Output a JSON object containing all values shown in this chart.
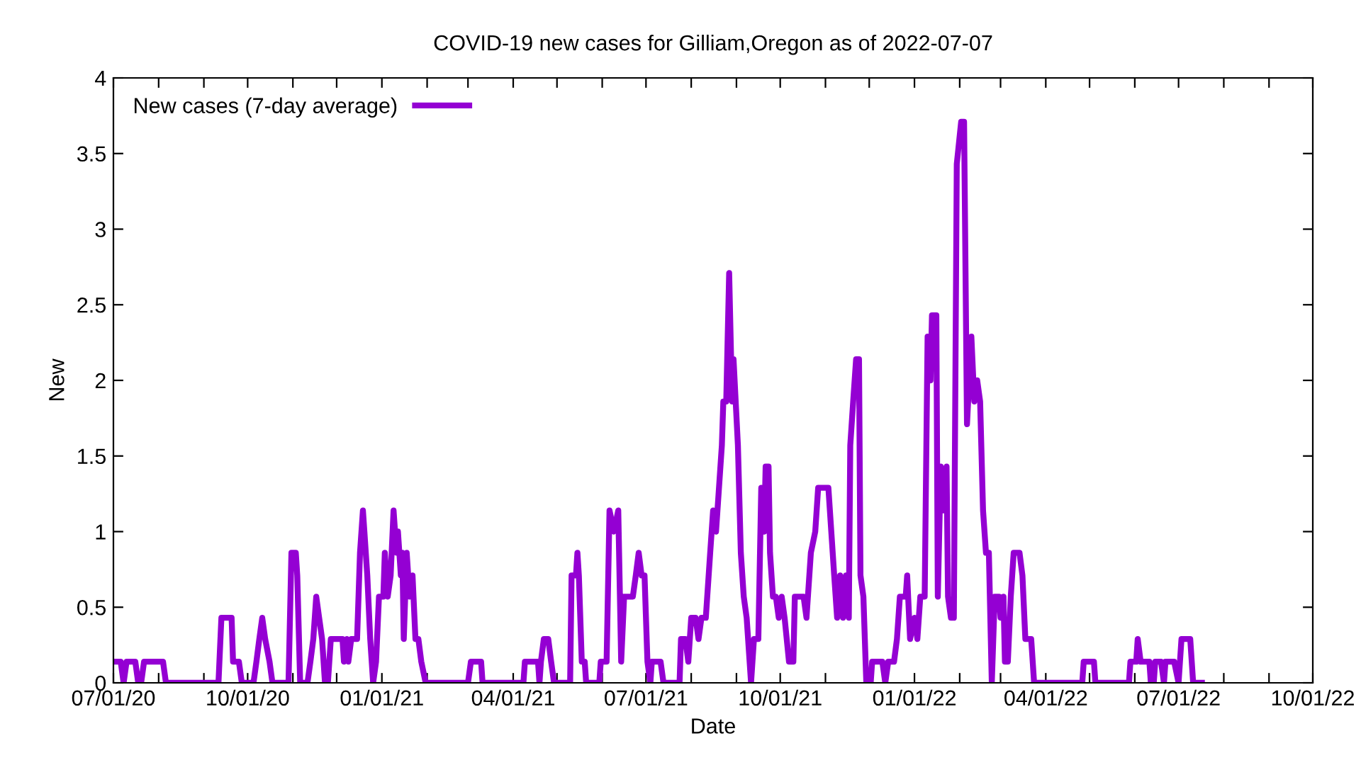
{
  "chart_data": {
    "type": "line",
    "title": "COVID-19 new cases for Gilliam,Oregon as of 2022-07-07",
    "xlabel": "Date",
    "ylabel": "New",
    "series": [
      {
        "name": "New cases (7-day average)",
        "color": "#9400d3",
        "x": [
          "2020-07-01",
          "2020-07-06",
          "2020-07-08",
          "2020-07-10",
          "2020-07-16",
          "2020-07-18",
          "2020-07-20",
          "2020-07-22",
          "2020-08-04",
          "2020-08-06",
          "2020-09-11",
          "2020-09-13",
          "2020-09-20",
          "2020-09-21",
          "2020-09-25",
          "2020-09-27",
          "2020-10-05",
          "2020-10-07",
          "2020-10-09",
          "2020-10-11",
          "2020-10-13",
          "2020-10-16",
          "2020-10-18",
          "2020-10-29",
          "2020-10-31",
          "2020-11-03",
          "2020-11-04",
          "2020-11-06",
          "2020-11-11",
          "2020-11-13",
          "2020-11-15",
          "2020-11-17",
          "2020-11-19",
          "2020-11-21",
          "2020-11-23",
          "2020-11-25",
          "2020-11-27",
          "2020-12-05",
          "2020-12-06",
          "2020-12-08",
          "2020-12-09",
          "2020-12-11",
          "2020-12-15",
          "2020-12-17",
          "2020-12-19",
          "2020-12-20",
          "2020-12-22",
          "2020-12-24",
          "2020-12-26",
          "2020-12-28",
          "2020-12-30",
          "2021-01-02",
          "2021-01-03",
          "2021-01-05",
          "2021-01-07",
          "2021-01-09",
          "2021-01-11",
          "2021-01-12",
          "2021-01-14",
          "2021-01-15",
          "2021-01-16",
          "2021-01-18",
          "2021-01-20",
          "2021-01-22",
          "2021-01-24",
          "2021-01-26",
          "2021-01-28",
          "2021-01-31",
          "2021-03-01",
          "2021-03-03",
          "2021-03-10",
          "2021-03-11",
          "2021-04-08",
          "2021-04-09",
          "2021-04-18",
          "2021-04-19",
          "2021-04-20",
          "2021-04-22",
          "2021-04-25",
          "2021-04-27",
          "2021-04-29",
          "2021-05-10",
          "2021-05-11",
          "2021-05-14",
          "2021-05-15",
          "2021-05-16",
          "2021-05-18",
          "2021-05-20",
          "2021-05-21",
          "2021-05-30",
          "2021-05-31",
          "2021-06-04",
          "2021-06-06",
          "2021-06-09",
          "2021-06-12",
          "2021-06-14",
          "2021-06-16",
          "2021-06-22",
          "2021-06-24",
          "2021-06-26",
          "2021-06-28",
          "2021-06-30",
          "2021-07-02",
          "2021-07-04",
          "2021-07-05",
          "2021-07-11",
          "2021-07-13",
          "2021-07-24",
          "2021-07-25",
          "2021-07-28",
          "2021-07-30",
          "2021-08-01",
          "2021-08-04",
          "2021-08-06",
          "2021-08-08",
          "2021-08-11",
          "2021-08-14",
          "2021-08-16",
          "2021-08-18",
          "2021-08-22",
          "2021-08-23",
          "2021-08-25",
          "2021-08-27",
          "2021-08-29",
          "2021-08-30",
          "2021-09-02",
          "2021-09-04",
          "2021-09-06",
          "2021-09-08",
          "2021-09-11",
          "2021-09-13",
          "2021-09-16",
          "2021-09-18",
          "2021-09-20",
          "2021-09-21",
          "2021-09-23",
          "2021-09-24",
          "2021-09-26",
          "2021-09-28",
          "2021-09-30",
          "2021-10-02",
          "2021-10-04",
          "2021-10-07",
          "2021-10-10",
          "2021-10-11",
          "2021-10-17",
          "2021-10-19",
          "2021-10-22",
          "2021-10-25",
          "2021-10-27",
          "2021-11-03",
          "2021-11-07",
          "2021-11-09",
          "2021-11-11",
          "2021-11-13",
          "2021-11-15",
          "2021-11-17",
          "2021-11-18",
          "2021-11-20",
          "2021-11-22",
          "2021-11-24",
          "2021-11-25",
          "2021-11-27",
          "2021-11-29",
          "2021-12-02",
          "2021-12-03",
          "2021-12-10",
          "2021-12-12",
          "2021-12-14",
          "2021-12-18",
          "2021-12-20",
          "2021-12-22",
          "2021-12-26",
          "2021-12-27",
          "2021-12-29",
          "2022-01-01",
          "2022-01-03",
          "2022-01-05",
          "2022-01-08",
          "2022-01-10",
          "2022-01-12",
          "2022-01-13",
          "2022-01-16",
          "2022-01-17",
          "2022-01-19",
          "2022-01-21",
          "2022-01-23",
          "2022-01-24",
          "2022-01-26",
          "2022-01-28",
          "2022-01-30",
          "2022-02-02",
          "2022-02-04",
          "2022-02-06",
          "2022-02-09",
          "2022-02-11",
          "2022-02-13",
          "2022-02-15",
          "2022-02-17",
          "2022-02-19",
          "2022-02-21",
          "2022-02-23",
          "2022-02-25",
          "2022-02-28",
          "2022-03-01",
          "2022-03-03",
          "2022-03-04",
          "2022-03-06",
          "2022-03-08",
          "2022-03-10",
          "2022-03-14",
          "2022-03-16",
          "2022-03-18",
          "2022-03-22",
          "2022-03-24",
          "2022-04-26",
          "2022-04-27",
          "2022-05-04",
          "2022-05-05",
          "2022-05-28",
          "2022-05-29",
          "2022-06-02",
          "2022-06-03",
          "2022-06-05",
          "2022-06-11",
          "2022-06-12",
          "2022-06-14",
          "2022-06-15",
          "2022-06-19",
          "2022-06-21",
          "2022-06-22",
          "2022-06-28",
          "2022-07-01",
          "2022-07-03",
          "2022-07-09",
          "2022-07-11",
          "2022-07-17"
        ],
        "values": [
          0.14,
          0.14,
          0,
          0.14,
          0.14,
          0,
          0,
          0.14,
          0.14,
          0,
          0,
          0.43,
          0.43,
          0.14,
          0.14,
          0,
          0,
          0.14,
          0.29,
          0.43,
          0.29,
          0.14,
          0,
          0,
          0.86,
          0.86,
          0.71,
          0,
          0,
          0.14,
          0.29,
          0.57,
          0.43,
          0.29,
          0,
          0,
          0.29,
          0.29,
          0.14,
          0.29,
          0.14,
          0.29,
          0.29,
          0.86,
          1.14,
          1.0,
          0.71,
          0.29,
          0,
          0.14,
          0.57,
          0.57,
          0.86,
          0.57,
          0.71,
          1.14,
          0.86,
          1.0,
          0.71,
          0.86,
          0.29,
          0.86,
          0.57,
          0.71,
          0.29,
          0.29,
          0.14,
          0,
          0,
          0.14,
          0.14,
          0,
          0,
          0.14,
          0.14,
          0,
          0.14,
          0.29,
          0.29,
          0.14,
          0,
          0,
          0.71,
          0.71,
          0.86,
          0.71,
          0.14,
          0.14,
          0,
          0,
          0.14,
          0.14,
          1.14,
          1.0,
          1.14,
          0.14,
          0.57,
          0.57,
          0.71,
          0.86,
          0.71,
          0.71,
          0.14,
          0,
          0.14,
          0.14,
          0,
          0,
          0.29,
          0.29,
          0.14,
          0.43,
          0.43,
          0.29,
          0.43,
          0.43,
          0.86,
          1.14,
          1.0,
          1.57,
          1.86,
          1.86,
          2.71,
          1.86,
          2.14,
          1.57,
          0.86,
          0.57,
          0.43,
          0,
          0.29,
          0.29,
          1.29,
          1.0,
          1.43,
          1.43,
          0.86,
          0.57,
          0.57,
          0.43,
          0.57,
          0.43,
          0.14,
          0.14,
          0.57,
          0.57,
          0.43,
          0.86,
          1.0,
          1.29,
          1.29,
          0.71,
          0.43,
          0.71,
          0.43,
          0.71,
          0.43,
          1.57,
          1.86,
          2.14,
          2.14,
          0.71,
          0.57,
          0,
          0,
          0.14,
          0.14,
          0,
          0.14,
          0.14,
          0.29,
          0.57,
          0.57,
          0.71,
          0.29,
          0.43,
          0.29,
          0.57,
          0.57,
          2.29,
          2.0,
          2.43,
          2.43,
          0.57,
          1.43,
          1.14,
          1.43,
          0.57,
          0.43,
          0.43,
          3.43,
          3.71,
          3.71,
          1.71,
          2.29,
          1.86,
          2.0,
          1.86,
          1.14,
          0.86,
          0.86,
          0,
          0.57,
          0.57,
          0.43,
          0.57,
          0.14,
          0.14,
          0.57,
          0.86,
          0.86,
          0.71,
          0.29,
          0.29,
          0,
          0,
          0.14,
          0.14,
          0,
          0,
          0.14,
          0.14,
          0.29,
          0.14,
          0.14,
          0,
          0,
          0.14,
          0.14,
          0,
          0.14,
          0.14,
          0,
          0.29,
          0.29,
          0,
          0
        ]
      }
    ],
    "xlim": [
      "2020-07-01",
      "2022-10-01"
    ],
    "xticks": [
      {
        "value": "2020-07-01",
        "label": "07/01/20"
      },
      {
        "value": "2020-08-01",
        "label": null
      },
      {
        "value": "2020-09-01",
        "label": null
      },
      {
        "value": "2020-10-01",
        "label": "10/01/20"
      },
      {
        "value": "2020-11-01",
        "label": null
      },
      {
        "value": "2020-12-01",
        "label": null
      },
      {
        "value": "2021-01-01",
        "label": "01/01/21"
      },
      {
        "value": "2021-02-01",
        "label": null
      },
      {
        "value": "2021-03-01",
        "label": null
      },
      {
        "value": "2021-04-01",
        "label": "04/01/21"
      },
      {
        "value": "2021-05-01",
        "label": null
      },
      {
        "value": "2021-06-01",
        "label": null
      },
      {
        "value": "2021-07-01",
        "label": "07/01/21"
      },
      {
        "value": "2021-08-01",
        "label": null
      },
      {
        "value": "2021-09-01",
        "label": null
      },
      {
        "value": "2021-10-01",
        "label": "10/01/21"
      },
      {
        "value": "2021-11-01",
        "label": null
      },
      {
        "value": "2021-12-01",
        "label": null
      },
      {
        "value": "2022-01-01",
        "label": "01/01/22"
      },
      {
        "value": "2022-02-01",
        "label": null
      },
      {
        "value": "2022-03-01",
        "label": null
      },
      {
        "value": "2022-04-01",
        "label": "04/01/22"
      },
      {
        "value": "2022-05-01",
        "label": null
      },
      {
        "value": "2022-06-01",
        "label": null
      },
      {
        "value": "2022-07-01",
        "label": "07/01/22"
      },
      {
        "value": "2022-08-01",
        "label": null
      },
      {
        "value": "2022-09-01",
        "label": null
      },
      {
        "value": "2022-10-01",
        "label": "10/01/22"
      }
    ],
    "ylim": [
      0,
      4
    ],
    "yticks": [
      0,
      0.5,
      1,
      1.5,
      2,
      2.5,
      3,
      3.5,
      4
    ],
    "grid": false,
    "legend": "top left",
    "line_style": "solid",
    "marker": "none"
  }
}
